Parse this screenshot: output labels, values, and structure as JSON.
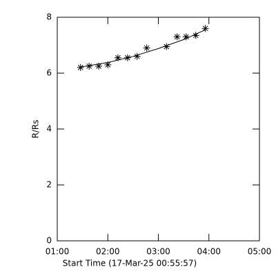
{
  "chart_data": {
    "type": "scatter",
    "xlabel": "Start Time (17-Mar-25 00:55:57)",
    "ylabel": "R/Rs",
    "xlim": [
      1,
      5
    ],
    "xticks": [
      {
        "value": 1,
        "label": "01:00"
      },
      {
        "value": 2,
        "label": "02:00"
      },
      {
        "value": 3,
        "label": "03:00"
      },
      {
        "value": 4,
        "label": "04:00"
      },
      {
        "value": 5,
        "label": "05:00"
      }
    ],
    "ylim": [
      0,
      8
    ],
    "yticks": [
      0,
      2,
      4,
      6,
      8
    ],
    "series": [
      {
        "color": "#000000",
        "marker": "asterisk",
        "x": [
          1.46,
          1.63,
          1.82,
          2.0,
          2.2,
          2.39,
          2.58,
          2.77,
          3.16,
          3.37,
          3.55,
          3.74,
          3.93
        ],
        "values": [
          6.2,
          6.25,
          6.25,
          6.3,
          6.55,
          6.55,
          6.6,
          6.9,
          6.95,
          7.3,
          7.3,
          7.35,
          7.6
        ]
      },
      {
        "color": "#000000",
        "marker": "line",
        "x": [
          1.46,
          2.0,
          2.5,
          3.0,
          3.5,
          3.93
        ],
        "values": [
          6.22,
          6.38,
          6.6,
          6.88,
          7.2,
          7.55
        ]
      }
    ]
  }
}
